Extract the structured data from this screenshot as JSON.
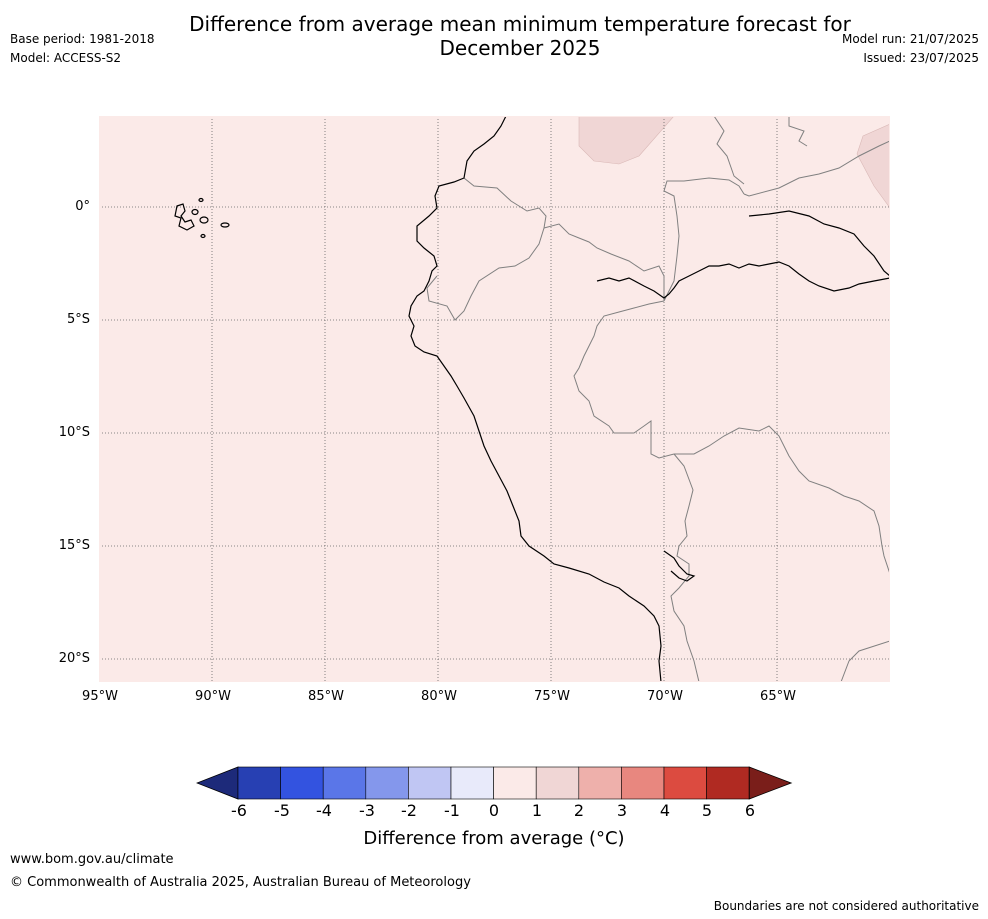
{
  "header": {
    "title_line1": "Difference from average mean minimum temperature forecast for",
    "title_line2": "December 2025",
    "base_period": "Base period: 1981-2018",
    "model": "Model: ACCESS-S2",
    "model_run": "Model run: 21/07/2025",
    "issued": "Issued: 23/07/2025"
  },
  "map": {
    "lat_labels": [
      "0°",
      "5°S",
      "10°S",
      "15°S",
      "20°S"
    ],
    "lon_labels": [
      "95°W",
      "90°W",
      "85°W",
      "80°W",
      "75°W",
      "70°W",
      "65°W"
    ],
    "fill_color": "#fbeae8",
    "warm_patch_color": "#f0d6d5",
    "coast_color": "#000000",
    "border_color": "#808080"
  },
  "colorbar": {
    "ticks": [
      "-6",
      "-5",
      "-4",
      "-3",
      "-2",
      "-1",
      "0",
      "1",
      "2",
      "3",
      "4",
      "5",
      "6"
    ],
    "colors": [
      "#1d2a7a",
      "#2740b3",
      "#3353e0",
      "#5a76e8",
      "#8497ec",
      "#c0c6f3",
      "#e8eafa",
      "#fbeae8",
      "#f0d6d5",
      "#eeb0ab",
      "#e8877f",
      "#dc4b40",
      "#b02a22",
      "#7a1e1a"
    ],
    "label": "Difference from average (°C)"
  },
  "footer": {
    "url": "www.bom.gov.au/climate",
    "copyright": "© Commonwealth of Australia 2025, Australian Bureau of Meteorology",
    "disclaimer": "Boundaries are not considered authoritative"
  }
}
